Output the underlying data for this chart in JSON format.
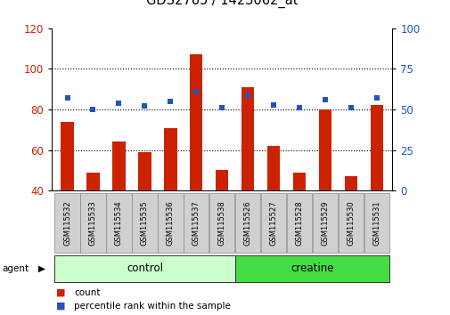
{
  "title": "GDS2765 / 1423062_at",
  "samples": [
    "GSM115532",
    "GSM115533",
    "GSM115534",
    "GSM115535",
    "GSM115536",
    "GSM115537",
    "GSM115538",
    "GSM115526",
    "GSM115527",
    "GSM115528",
    "GSM115529",
    "GSM115530",
    "GSM115531"
  ],
  "count_values": [
    74,
    49,
    64,
    59,
    71,
    107,
    50,
    91,
    62,
    49,
    80,
    47,
    82
  ],
  "percentile_values": [
    57,
    50,
    54,
    52,
    55,
    61,
    51,
    59,
    53,
    51,
    56,
    51,
    57
  ],
  "ylim_left": [
    40,
    120
  ],
  "ylim_right": [
    0,
    100
  ],
  "yticks_left": [
    40,
    60,
    80,
    100,
    120
  ],
  "yticks_right": [
    0,
    25,
    50,
    75,
    100
  ],
  "bar_color": "#cc2200",
  "dot_color": "#2255bb",
  "groups": [
    {
      "label": "control",
      "n": 7,
      "color": "#ccffcc"
    },
    {
      "label": "creatine",
      "n": 6,
      "color": "#44dd44"
    }
  ],
  "agent_label": "agent",
  "legend_items": [
    {
      "label": "count",
      "color": "#cc2200"
    },
    {
      "label": "percentile rank within the sample",
      "color": "#2255bb"
    }
  ],
  "grid_lines": [
    60,
    80,
    100
  ],
  "background_color": "#ffffff",
  "tick_label_area_color": "#d0d0d0",
  "bar_width": 0.5
}
